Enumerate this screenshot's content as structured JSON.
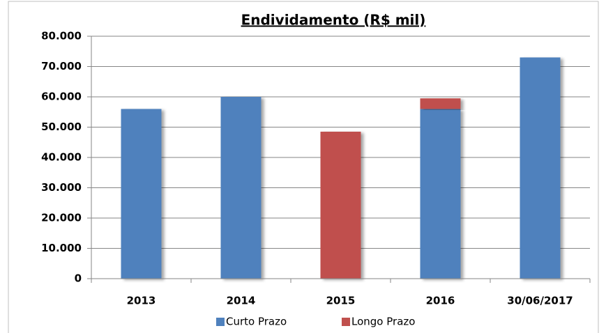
{
  "chart_data": {
    "type": "stacked_bar",
    "title": "Endividamento (R$ mil)",
    "categories": [
      "2013",
      "2014",
      "2015",
      "2016",
      "30/06/2017"
    ],
    "series": [
      {
        "name": "Curto Prazo",
        "color": "#4f81bd",
        "values": [
          56000,
          60000,
          0,
          56000,
          73000
        ]
      },
      {
        "name": "Longo Prazo",
        "color": "#c0504d",
        "values": [
          0,
          0,
          48500,
          3500,
          0
        ]
      }
    ],
    "ylim": [
      0,
      80000
    ],
    "yticks": [
      0,
      {
        "value": 10000,
        "label": "10.000"
      },
      {
        "value": 20000,
        "label": "20.000"
      },
      {
        "value": 30000,
        "label": "30.000"
      },
      {
        "value": 40000,
        "label": "40.000"
      },
      {
        "value": 50000,
        "label": "50.000"
      },
      {
        "value": 60000,
        "label": "60.000"
      },
      {
        "value": 70000,
        "label": "70.000"
      },
      {
        "value": 80000,
        "label": "80.000"
      }
    ],
    "grid": true,
    "legend": "bottom"
  }
}
